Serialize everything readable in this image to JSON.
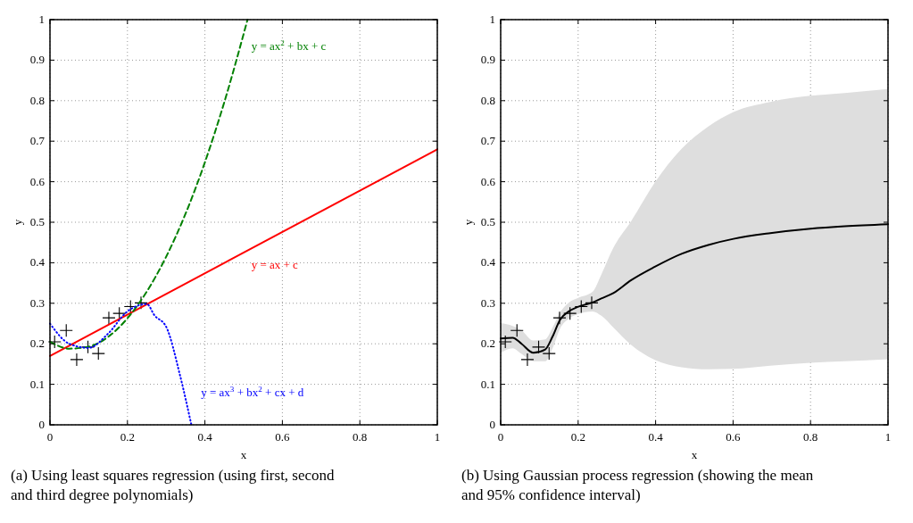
{
  "chart_data": [
    {
      "type": "line",
      "xlabel": "x",
      "ylabel": "y",
      "xlim": [
        0,
        1
      ],
      "ylim": [
        0,
        1
      ],
      "xticks": [
        0,
        0.2,
        0.4,
        0.6,
        0.8,
        1
      ],
      "yticks": [
        0,
        0.1,
        0.2,
        0.3,
        0.4,
        0.5,
        0.6,
        0.7,
        0.8,
        0.9,
        1
      ],
      "grid": true,
      "annotations": [
        "(a) Using least squares regression (using first, second and third degree polynomials)"
      ],
      "series": [
        {
          "type": "scatter",
          "marker": "cross",
          "color": "#000000",
          "x": [
            0.012,
            0.042,
            0.069,
            0.098,
            0.125,
            0.152,
            0.179,
            0.208,
            0.235
          ],
          "values": [
            0.205,
            0.233,
            0.161,
            0.192,
            0.176,
            0.264,
            0.275,
            0.292,
            0.301
          ]
        },
        {
          "name": "y = ax + c",
          "line_style": "solid",
          "color": "#ff0000",
          "x": [
            0,
            1
          ],
          "values": [
            0.17,
            0.68
          ]
        },
        {
          "name": "y = ax$^{2}$ + bx + c",
          "line_style": "dashed",
          "color": "#008000",
          "x": [
            0,
            0.05,
            0.1,
            0.15,
            0.2,
            0.25,
            0.3,
            0.35,
            0.4,
            0.45,
            0.51
          ],
          "values": [
            0.205,
            0.188,
            0.193,
            0.217,
            0.263,
            0.329,
            0.415,
            0.521,
            0.648,
            0.796,
            1.0
          ]
        },
        {
          "name": "y = ax$^{3}$ + bx$^{2}$ + cx + d",
          "line_style": "dotted",
          "color": "#0000ff",
          "x": [
            0,
            0.05,
            0.1,
            0.15,
            0.2,
            0.25,
            0.27,
            0.3,
            0.335,
            0.365
          ],
          "values": [
            0.25,
            0.2,
            0.19,
            0.225,
            0.28,
            0.298,
            0.27,
            0.242,
            0.125,
            0
          ]
        }
      ]
    },
    {
      "type": "line",
      "xlabel": "x",
      "ylabel": "y",
      "xlim": [
        0,
        1
      ],
      "ylim": [
        0,
        1
      ],
      "xticks": [
        0,
        0.2,
        0.4,
        0.6,
        0.8,
        1
      ],
      "yticks": [
        0,
        0.1,
        0.2,
        0.3,
        0.4,
        0.5,
        0.6,
        0.7,
        0.8,
        0.9,
        1
      ],
      "grid": true,
      "annotations": [
        "(b) Using Gaussian process regression (showing the mean and 95% confidence interval)"
      ],
      "series": [
        {
          "line_style": "solid",
          "color": "#000000",
          "x": [
            0,
            0.031,
            0.054,
            0.084,
            0.115,
            0.134,
            0.153,
            0.176,
            0.199,
            0.237,
            0.26,
            0.291,
            0.337,
            0.398,
            0.467,
            0.536,
            0.601,
            0.696,
            0.8,
            0.888,
            1
          ],
          "values": [
            0.213,
            0.215,
            0.2,
            0.178,
            0.186,
            0.218,
            0.259,
            0.28,
            0.291,
            0.302,
            0.312,
            0.325,
            0.357,
            0.39,
            0.422,
            0.444,
            0.459,
            0.473,
            0.484,
            0.49,
            0.495
          ],
          "upper": [
            0.251,
            0.244,
            0.233,
            0.208,
            0.211,
            0.24,
            0.277,
            0.302,
            0.313,
            0.328,
            0.371,
            0.437,
            0.503,
            0.598,
            0.681,
            0.736,
            0.772,
            0.797,
            0.812,
            0.819,
            0.829
          ],
          "lower": [
            0.178,
            0.189,
            0.175,
            0.157,
            0.157,
            0.189,
            0.237,
            0.262,
            0.273,
            0.28,
            0.269,
            0.24,
            0.197,
            0.16,
            0.142,
            0.137,
            0.138,
            0.146,
            0.153,
            0.157,
            0.162
          ]
        },
        {
          "type": "scatter",
          "marker": "cross",
          "color": "#000000",
          "x": [
            0.012,
            0.042,
            0.069,
            0.098,
            0.125,
            0.152,
            0.179,
            0.208,
            0.235
          ],
          "values": [
            0.205,
            0.233,
            0.161,
            0.192,
            0.176,
            0.264,
            0.275,
            0.292,
            0.301
          ]
        }
      ]
    }
  ]
}
